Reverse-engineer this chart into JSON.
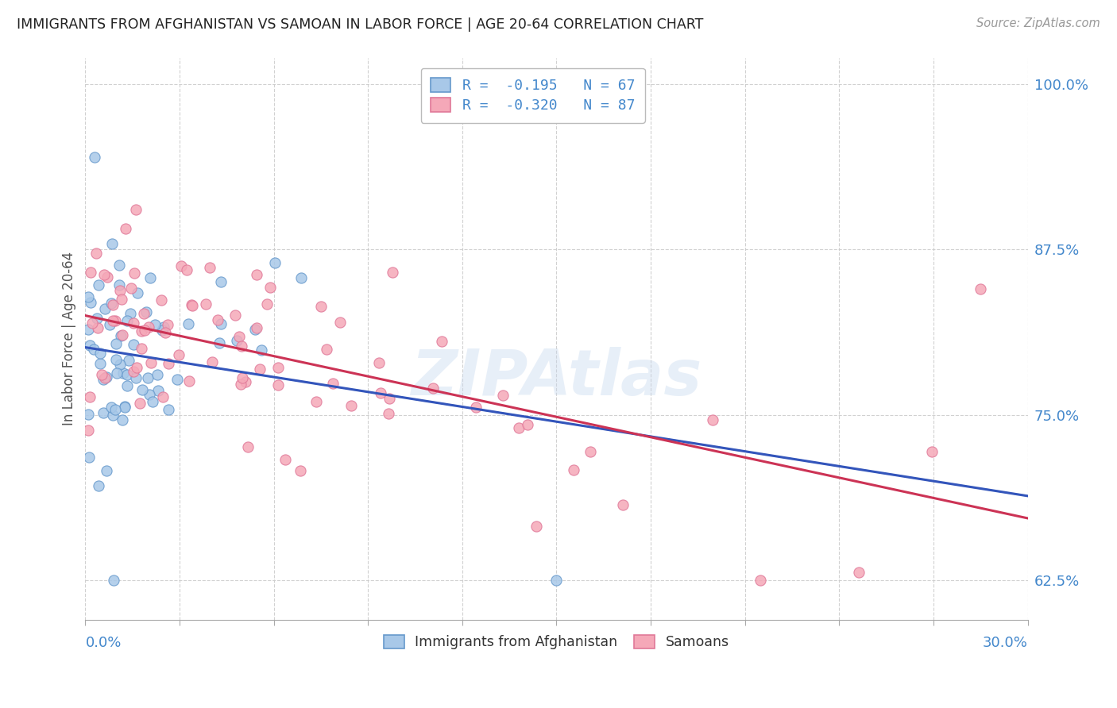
{
  "title": "IMMIGRANTS FROM AFGHANISTAN VS SAMOAN IN LABOR FORCE | AGE 20-64 CORRELATION CHART",
  "source": "Source: ZipAtlas.com",
  "ylabel": "In Labor Force | Age 20-64",
  "legend_entries": [
    {
      "label": "R =  -0.195   N = 67"
    },
    {
      "label": "R =  -0.320   N = 87"
    }
  ],
  "legend_labels": [
    "Immigrants from Afghanistan",
    "Samoans"
  ],
  "afg_color": "#a8c8e8",
  "afg_edge": "#6699cc",
  "sam_color": "#f5a8b8",
  "sam_edge": "#e07898",
  "afg_line_color": "#3355bb",
  "sam_line_color": "#cc3355",
  "dashed_line_color": "#88aad4",
  "x_min": 0.0,
  "x_max": 0.3,
  "y_min": 0.595,
  "y_max": 1.02,
  "background_color": "#ffffff",
  "grid_color": "#cccccc",
  "title_color": "#222222",
  "axis_label_color": "#4488cc",
  "y_tick_vals": [
    0.625,
    0.75,
    0.875,
    1.0
  ],
  "x_tick_count": 10
}
